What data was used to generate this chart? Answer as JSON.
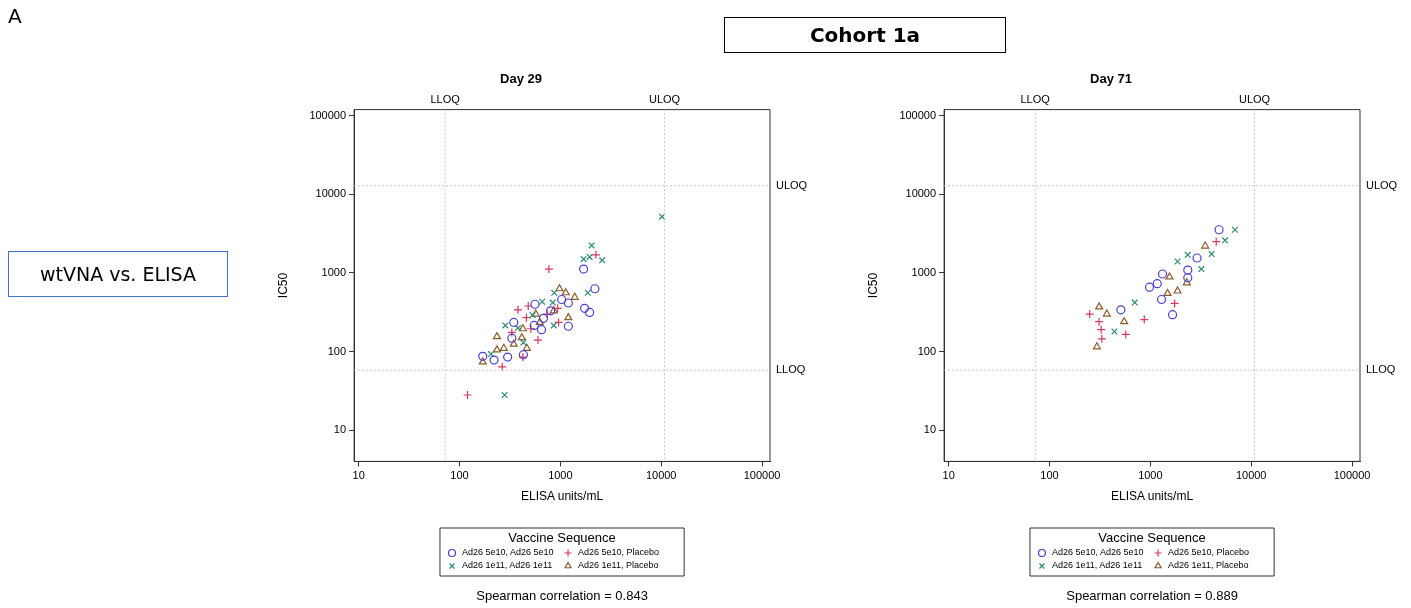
{
  "chart_data": [
    {
      "type": "scatter",
      "title": "Day 29",
      "xlabel": "ELISA units/mL",
      "ylabel": "IC50",
      "legend_title": "Vaccine Sequence",
      "legend": "bottom",
      "log": "xy",
      "xlim": [
        9,
        120000
      ],
      "ylim": [
        4,
        120000
      ],
      "xticks": [
        10,
        100,
        1000,
        10000,
        100000
      ],
      "yticks": [
        10,
        100,
        1000,
        10000,
        100000
      ],
      "ref_lines": [
        {
          "axis": "x",
          "value": 72,
          "label": "LLOQ",
          "line_style": "dotted"
        },
        {
          "axis": "x",
          "value": 10800,
          "label": "ULOQ",
          "line_style": "dotted"
        },
        {
          "axis": "y",
          "value": 58,
          "label": "LLOQ",
          "line_style": "dotted"
        },
        {
          "axis": "y",
          "value": 12900,
          "label": "ULOQ",
          "line_style": "dotted"
        }
      ],
      "series": [
        {
          "name": "Ad26 5e10, Ad26 5e10",
          "color": "#4a3fd6",
          "marker": "circle",
          "x": [
            1700,
            2200,
            1740,
            1950,
            1200,
            1200,
            1030,
            560,
            345,
            330,
            170,
            220,
            300,
            430,
            680,
            650,
            800,
            550
          ],
          "values": [
            1120,
            630,
            355,
            315,
            210,
            415,
            460,
            400,
            235,
            148,
            87,
            78,
            85,
            91,
            265,
            190,
            330,
            215
          ]
        },
        {
          "name": "Ad26 1e11, Ad26 1e11",
          "color": "#2a8a6e",
          "marker": "cross",
          "x": [
            10200,
            2040,
            1700,
            1950,
            2600,
            1870,
            870,
            660,
            840,
            860,
            285,
            205,
            280,
            380,
            430,
            530
          ],
          "values": [
            5200,
            2240,
            1500,
            1600,
            1450,
            560,
            560,
            430,
            420,
            215,
            215,
            93,
            28,
            200,
            130,
            290
          ]
        },
        {
          "name": "Ad26 5e10, Placebo",
          "color": "#d63a5c",
          "marker": "plus",
          "x": [
            120,
            265,
            770,
            380,
            480,
            460,
            2250,
            600,
            940,
            960,
            330,
            425,
            510,
            740
          ],
          "values": [
            28,
            64,
            1120,
            340,
            380,
            270,
            1700,
            140,
            355,
            235,
            175,
            85,
            195,
            300
          ]
        },
        {
          "name": "Ad26 1e11, Placebo",
          "color": "#8b5a2b",
          "marker": "triangle",
          "x": [
            980,
            1130,
            1390,
            1200,
            235,
            170,
            235,
            275,
            345,
            415,
            465,
            570,
            860,
            425,
            625
          ],
          "values": [
            630,
            560,
            490,
            270,
            155,
            74,
            105,
            110,
            124,
            150,
            110,
            300,
            330,
            195,
            235
          ]
        }
      ],
      "annotations": [
        "Spearman correlation = 0.843"
      ]
    },
    {
      "type": "scatter",
      "title": "Day 71",
      "xlabel": "ELISA units/mL",
      "ylabel": "IC50",
      "legend_title": "Vaccine Sequence",
      "legend": "bottom",
      "log": "xy",
      "xlim": [
        9,
        120000
      ],
      "ylim": [
        4,
        120000
      ],
      "xticks": [
        10,
        100,
        1000,
        10000,
        100000
      ],
      "yticks": [
        10,
        100,
        1000,
        10000,
        100000
      ],
      "ref_lines": [
        {
          "axis": "x",
          "value": 72,
          "label": "LLOQ",
          "line_style": "dotted"
        },
        {
          "axis": "x",
          "value": 10800,
          "label": "ULOQ",
          "line_style": "dotted"
        },
        {
          "axis": "y",
          "value": 58,
          "label": "LLOQ",
          "line_style": "dotted"
        },
        {
          "axis": "y",
          "value": 12900,
          "label": "ULOQ",
          "line_style": "dotted"
        }
      ],
      "series": [
        {
          "name": "Ad26 5e10, Ad26 5e10",
          "color": "#4a3fd6",
          "marker": "circle",
          "x": [
            4800,
            2900,
            2350,
            2350,
            1320,
            1170,
            1290,
            1660,
            510,
            980
          ],
          "values": [
            3550,
            1550,
            1090,
            870,
            970,
            730,
            460,
            295,
            340,
            660
          ]
        },
        {
          "name": "Ad26 1e11, Ad26 1e11",
          "color": "#2a8a6e",
          "marker": "cross",
          "x": [
            6900,
            5500,
            4050,
            2350,
            1860,
            3200,
            440,
            700
          ],
          "values": [
            3550,
            2600,
            1740,
            1700,
            1400,
            1120,
            180,
            420
          ]
        },
        {
          "name": "Ad26 5e10, Placebo",
          "color": "#d63a5c",
          "marker": "plus",
          "x": [
            4500,
            310,
            325,
            330,
            570,
            870,
            1740,
            250
          ],
          "values": [
            2500,
            240,
            190,
            145,
            165,
            255,
            410,
            300
          ]
        },
        {
          "name": "Ad26 1e11, Placebo",
          "color": "#8b5a2b",
          "marker": "triangle",
          "x": [
            3500,
            2300,
            1550,
            1480,
            1860,
            310,
            295,
            370,
            550
          ],
          "values": [
            2200,
            750,
            890,
            550,
            590,
            370,
            115,
            300,
            240
          ]
        }
      ],
      "annotations": [
        "Spearman correlation = 0.889"
      ]
    },
    {
      "type": "other",
      "title": "Cohort 1a",
      "annotations": [
        "A",
        "wtVNA vs. ELISA"
      ]
    }
  ]
}
